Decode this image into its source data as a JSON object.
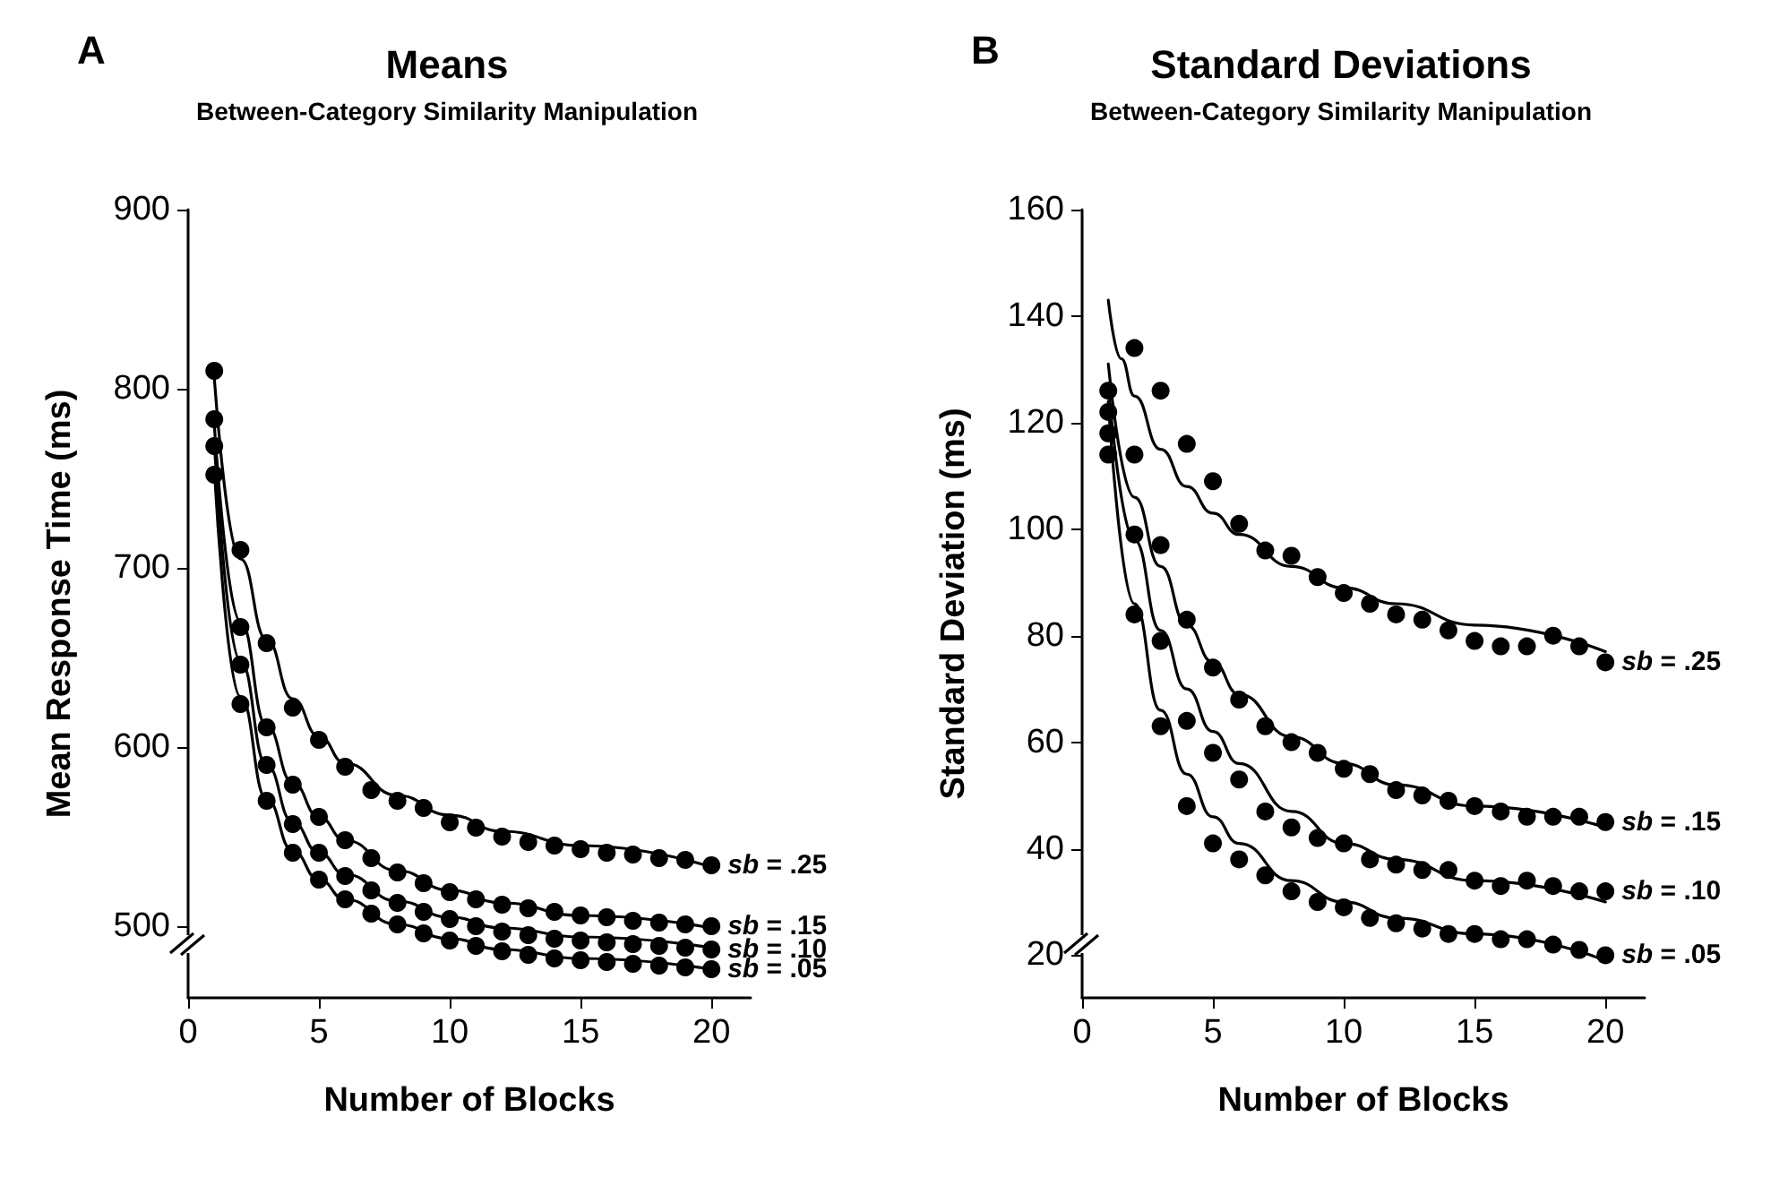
{
  "chart_data": [
    {
      "type": "scatter",
      "title": "Means",
      "subtitle": "Between-Category Similarity Manipulation",
      "annotations": [
        "A"
      ],
      "xlabel": "Number of Blocks",
      "ylabel": "Mean Response Time (ms)",
      "x": [
        1,
        2,
        3,
        4,
        5,
        6,
        7,
        8,
        9,
        10,
        11,
        12,
        13,
        14,
        15,
        16,
        17,
        18,
        19,
        20
      ],
      "xlim": [
        0,
        21.5
      ],
      "xticks": [
        0,
        5,
        10,
        15,
        20
      ],
      "ylim": [
        460,
        900
      ],
      "yticks": [
        500,
        600,
        700,
        800,
        900
      ],
      "grid": false,
      "legend": false,
      "series": [
        {
          "name": "sb = .25",
          "color": "#000000",
          "marker": "circle",
          "values": [
            810,
            710,
            658,
            622,
            604,
            589,
            576,
            570,
            566,
            558,
            555,
            550,
            547,
            545,
            543,
            541,
            540,
            538,
            537,
            534
          ]
        },
        {
          "name": "sb = .15",
          "color": "#000000",
          "marker": "circle",
          "values": [
            783,
            667,
            611,
            579,
            561,
            548,
            538,
            530,
            524,
            519,
            515,
            512,
            510,
            508,
            506,
            505,
            503,
            502,
            501,
            500
          ]
        },
        {
          "name": "sb = .10",
          "color": "#000000",
          "marker": "circle",
          "values": [
            768,
            646,
            590,
            557,
            541,
            528,
            520,
            513,
            508,
            504,
            500,
            497,
            495,
            493,
            492,
            491,
            490,
            489,
            488,
            487
          ]
        },
        {
          "name": "sb = .05",
          "color": "#000000",
          "marker": "circle",
          "values": [
            752,
            624,
            570,
            541,
            526,
            515,
            507,
            501,
            496,
            492,
            489,
            486,
            484,
            482,
            481,
            480,
            479,
            478,
            477,
            476
          ]
        },
        {
          "type": "line",
          "color": "#000000",
          "marker": "none",
          "x": [
            1,
            2,
            3,
            4,
            5,
            6,
            8,
            10,
            12,
            15,
            20
          ],
          "values": [
            806,
            705,
            660,
            627,
            606,
            591,
            573,
            562,
            553,
            545,
            533
          ]
        },
        {
          "type": "line",
          "color": "#000000",
          "marker": "none",
          "x": [
            1,
            2,
            3,
            4,
            5,
            6,
            8,
            10,
            12,
            15,
            20
          ],
          "values": [
            780,
            670,
            612,
            580,
            561,
            548,
            531,
            520,
            513,
            506,
            499
          ]
        },
        {
          "type": "line",
          "color": "#000000",
          "marker": "none",
          "x": [
            1,
            2,
            3,
            4,
            5,
            6,
            8,
            10,
            12,
            15,
            20
          ],
          "values": [
            770,
            648,
            590,
            558,
            541,
            529,
            514,
            505,
            499,
            494,
            488
          ]
        },
        {
          "type": "line",
          "color": "#000000",
          "marker": "none",
          "x": [
            1,
            2,
            3,
            4,
            5,
            6,
            8,
            10,
            12,
            15,
            20
          ],
          "values": [
            755,
            628,
            571,
            542,
            526,
            515,
            501,
            493,
            487,
            482,
            476
          ]
        }
      ]
    },
    {
      "type": "scatter",
      "title": "Standard Deviations",
      "subtitle": "Between-Category Similarity Manipulation",
      "annotations": [
        "B"
      ],
      "xlabel": "Number of Blocks",
      "ylabel": "Standard Deviation (ms)",
      "x": [
        1,
        2,
        3,
        4,
        5,
        6,
        7,
        8,
        9,
        10,
        11,
        12,
        13,
        14,
        15,
        16,
        17,
        18,
        19,
        20
      ],
      "xlim": [
        0,
        21.5
      ],
      "xticks": [
        0,
        5,
        10,
        15,
        20
      ],
      "ylim": [
        12,
        160
      ],
      "yticks": [
        20,
        40,
        60,
        80,
        100,
        120,
        140,
        160
      ],
      "grid": false,
      "legend": false,
      "series": [
        {
          "name": "sb = .25",
          "color": "#000000",
          "marker": "circle",
          "values": [
            126,
            134,
            126,
            116,
            109,
            101,
            96,
            95,
            91,
            88,
            86,
            84,
            83,
            81,
            79,
            78,
            78,
            80,
            78,
            75
          ]
        },
        {
          "name": "sb = .15",
          "color": "#000000",
          "marker": "circle",
          "values": [
            122,
            114,
            97,
            83,
            74,
            68,
            63,
            60,
            58,
            55,
            54,
            51,
            50,
            49,
            48,
            47,
            46,
            46,
            46,
            45
          ]
        },
        {
          "name": "sb = .10",
          "color": "#000000",
          "marker": "circle",
          "values": [
            118,
            99,
            79,
            64,
            58,
            53,
            47,
            44,
            42,
            41,
            38,
            37,
            36,
            36,
            34,
            33,
            34,
            33,
            32,
            32
          ]
        },
        {
          "name": "sb = .05",
          "color": "#000000",
          "marker": "circle",
          "values": [
            114,
            84,
            63,
            48,
            41,
            38,
            35,
            32,
            30,
            29,
            27,
            26,
            25,
            24,
            24,
            23,
            23,
            22,
            21,
            20
          ]
        },
        {
          "type": "line",
          "color": "#000000",
          "marker": "none",
          "x": [
            1,
            1.5,
            2,
            3,
            4,
            5,
            6,
            8,
            10,
            12,
            15,
            20
          ],
          "values": [
            143,
            132,
            125,
            115,
            108,
            103,
            99,
            93,
            89,
            86,
            82,
            77
          ]
        },
        {
          "type": "line",
          "color": "#000000",
          "marker": "none",
          "x": [
            1,
            2,
            3,
            4,
            5,
            6,
            8,
            10,
            12,
            15,
            20
          ],
          "values": [
            131,
            106,
            93,
            82,
            75,
            69,
            61,
            56,
            52,
            48,
            44
          ]
        },
        {
          "type": "line",
          "color": "#000000",
          "marker": "none",
          "x": [
            1,
            2,
            3,
            4,
            5,
            6,
            8,
            10,
            12,
            15,
            20
          ],
          "values": [
            127,
            98,
            81,
            70,
            62,
            56,
            47,
            41,
            38,
            34,
            30
          ]
        },
        {
          "type": "line",
          "color": "#000000",
          "marker": "none",
          "x": [
            1,
            2,
            3,
            4,
            5,
            6,
            8,
            10,
            12,
            15,
            20
          ],
          "values": [
            124,
            86,
            66,
            54,
            46,
            41,
            34,
            30,
            27,
            24,
            19
          ]
        }
      ]
    }
  ]
}
